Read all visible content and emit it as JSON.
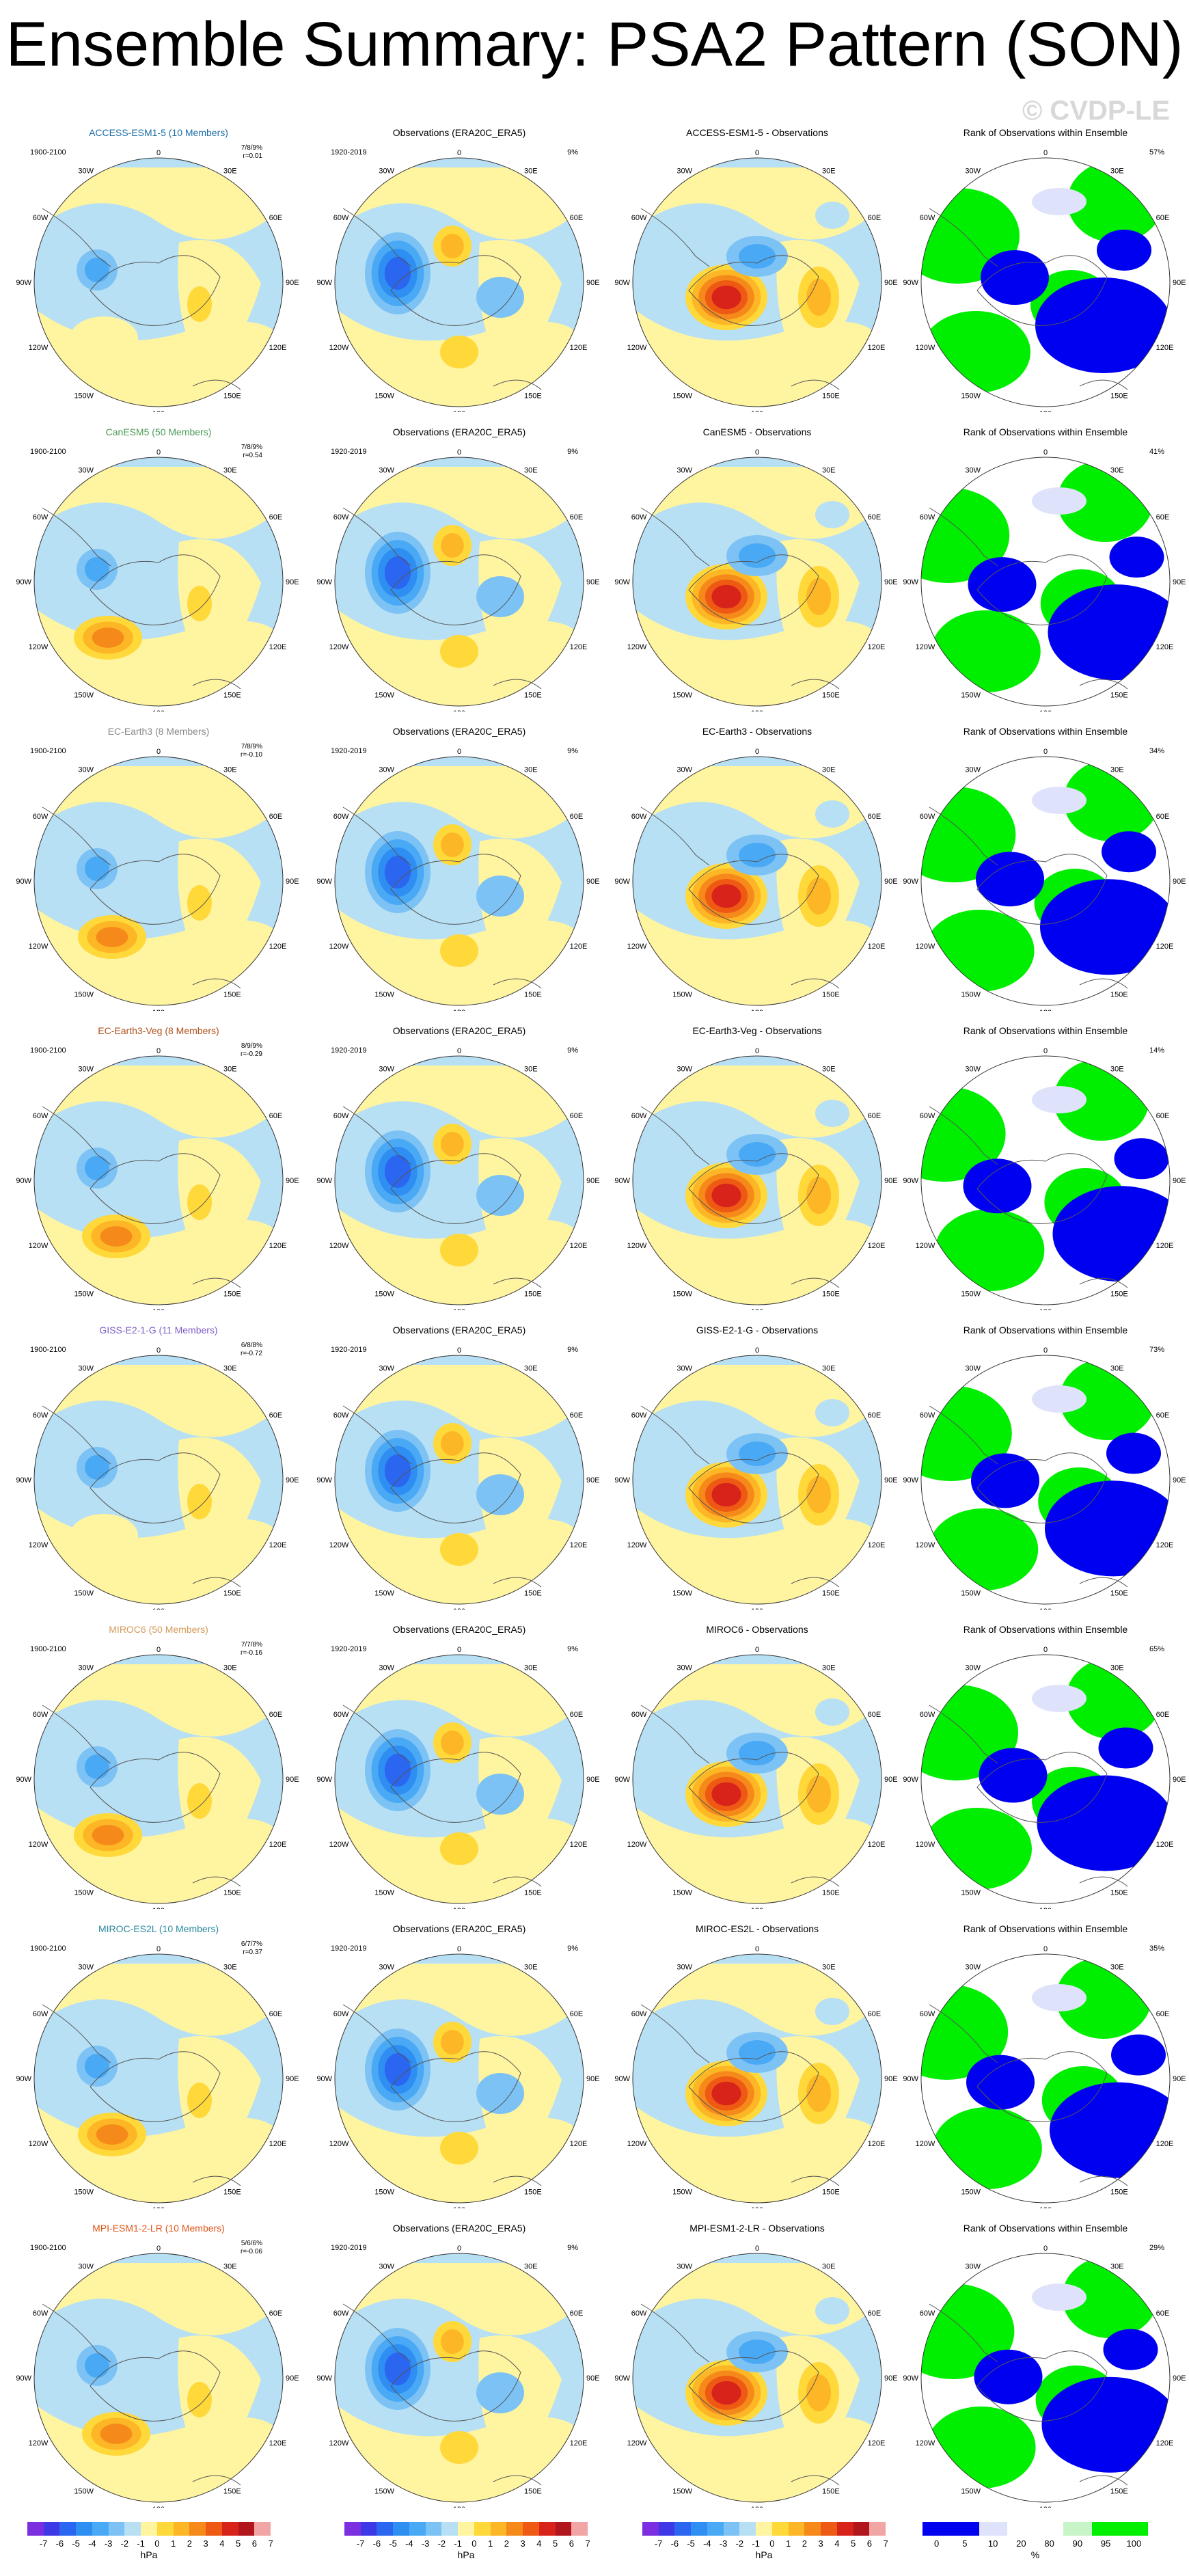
{
  "title": "Ensemble Summary: PSA2 Pattern (SON)",
  "watermark": "© CVDP-LE",
  "obs_title": "Observations (ERA20C_ERA5)",
  "rank_title": "Rank of Observations within Ensemble",
  "obs_years": "1920-2019",
  "model_years": "1900-2100",
  "obs_pct": "9%",
  "map_labels": {
    "n0": "0",
    "w30": "30W",
    "e30": "30E",
    "w60": "60W",
    "e60": "60E",
    "w90": "90W",
    "e90": "90E",
    "w120": "120W",
    "e120": "120E",
    "w150": "150W",
    "e150": "150E",
    "s180": "180"
  },
  "colors": {
    "neg7": "#7b2fe0",
    "neg6": "#3f38e6",
    "neg5": "#2b66f0",
    "neg4": "#2f8ef2",
    "neg3": "#4aa9f5",
    "neg2": "#7cc2f5",
    "neg1": "#b7e0f4",
    "pos1": "#fff4a0",
    "pos2": "#ffd83a",
    "pos3": "#fdb625",
    "pos4": "#f58a1a",
    "pos5": "#ee5a14",
    "pos6": "#d8231a",
    "pos7": "#b0161c",
    "pos8": "#f2a5a5",
    "rank_blue": "#0000f0",
    "rank_green": "#00ee00",
    "rank_lightblue": "#dfe2fb",
    "rank_lightgreen": "#c8f5c8"
  },
  "rows": [
    {
      "model": "ACCESS-ESM1-5 (10 Members)",
      "diff": "ACCESS-ESM1-5 - Observations",
      "stats": "7/8/9%",
      "r": "r=0.01",
      "pct": "57%",
      "color": "#1b6fa8"
    },
    {
      "model": "CanESM5 (50 Members)",
      "diff": "CanESM5 - Observations",
      "stats": "7/8/9%",
      "r": "r=0.54",
      "pct": "41%",
      "color": "#4a9a55"
    },
    {
      "model": "EC-Earth3 (8 Members)",
      "diff": "EC-Earth3 - Observations",
      "stats": "7/8/9%",
      "r": "r=-0.10",
      "pct": "34%",
      "color": "#888888"
    },
    {
      "model": "EC-Earth3-Veg (8 Members)",
      "diff": "EC-Earth3-Veg - Observations",
      "stats": "8/9/9%",
      "r": "r=-0.29",
      "pct": "14%",
      "color": "#b0501a"
    },
    {
      "model": "GISS-E2-1-G (11 Members)",
      "diff": "GISS-E2-1-G - Observations",
      "stats": "6/8/8%",
      "r": "r=-0.72",
      "pct": "73%",
      "color": "#7d5cc8"
    },
    {
      "model": "MIROC6 (50 Members)",
      "diff": "MIROC6 - Observations",
      "stats": "7/7/8%",
      "r": "r=-0.16",
      "pct": "65%",
      "color": "#d49a5a"
    },
    {
      "model": "MIROC-ES2L (10 Members)",
      "diff": "MIROC-ES2L - Observations",
      "stats": "6/7/7%",
      "r": "r=0.37",
      "pct": "35%",
      "color": "#2a8aa0"
    },
    {
      "model": "MPI-ESM1-2-LR (10 Members)",
      "diff": "MPI-ESM1-2-LR - Observations",
      "stats": "5/6/6%",
      "r": "r=-0.06",
      "pct": "29%",
      "color": "#e0561a"
    }
  ],
  "chart_data": {
    "type": "heatmap",
    "title": "Ensemble Summary: PSA2 Pattern (SON)",
    "projection": "south polar stereographic",
    "colorbar_hpa": {
      "ticks": [
        "-7",
        "-6",
        "-5",
        "-4",
        "-3",
        "-2",
        "-1",
        "0",
        "1",
        "2",
        "3",
        "4",
        "5",
        "6",
        "7"
      ],
      "units": "hPa"
    },
    "colorbar_rank": {
      "ticks": [
        "0",
        "5",
        "10",
        "20",
        "80",
        "90",
        "95",
        "100"
      ],
      "units": "%"
    }
  }
}
